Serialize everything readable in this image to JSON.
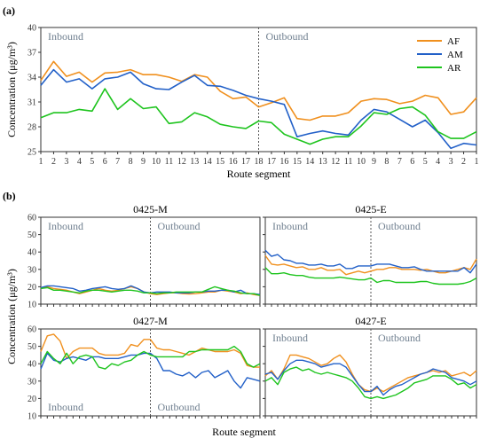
{
  "colors": {
    "AF": "#f0901e",
    "AM": "#2260c8",
    "AR": "#1ec41e",
    "divider": "#555555",
    "frame": "#333333"
  },
  "chart_data": [
    {
      "panel": "(a)",
      "type": "line",
      "title": "",
      "xlabel": "Route segment",
      "ylabel": "Concentration (μg/m³)",
      "ylim": [
        25,
        40
      ],
      "yticks": [
        25,
        28,
        31,
        34,
        37,
        40
      ],
      "x_ticklabels": [
        "1",
        "2",
        "3",
        "4",
        "5",
        "6",
        "7",
        "8",
        "9",
        "10",
        "11",
        "12",
        "13",
        "14",
        "15",
        "16",
        "17",
        "18",
        "17",
        "16",
        "15",
        "14",
        "13",
        "12",
        "11",
        "10",
        "9",
        "8",
        "7",
        "6",
        "5",
        "4",
        "3",
        "2",
        "1"
      ],
      "direction_labels": [
        "Inbound",
        "Outbound"
      ],
      "divider_after_index": 17,
      "legend": [
        "AF",
        "AM",
        "AR"
      ],
      "legend_position": "top-right",
      "series": [
        {
          "name": "AF",
          "values": [
            33.6,
            35.9,
            34.1,
            34.6,
            33.4,
            34.5,
            34.6,
            34.9,
            34.3,
            34.3,
            34.0,
            33.5,
            34.3,
            34.0,
            32.3,
            31.4,
            31.6,
            30.4,
            30.9,
            31.5,
            29.0,
            28.8,
            29.3,
            29.3,
            29.7,
            31.1,
            31.4,
            31.3,
            30.8,
            31.1,
            31.8,
            31.5,
            29.5,
            29.8,
            31.5
          ]
        },
        {
          "name": "AM",
          "values": [
            33.0,
            34.9,
            33.4,
            33.8,
            32.6,
            33.8,
            34.0,
            34.6,
            33.2,
            32.6,
            32.5,
            33.4,
            34.2,
            33.0,
            32.9,
            32.4,
            31.8,
            31.4,
            31.1,
            30.7,
            26.8,
            27.2,
            27.5,
            27.2,
            27.0,
            28.8,
            30.1,
            29.8,
            28.9,
            28.0,
            28.8,
            27.3,
            25.4,
            26.0,
            25.8
          ]
        },
        {
          "name": "AR",
          "values": [
            29.1,
            29.7,
            29.7,
            30.1,
            29.9,
            32.6,
            30.1,
            31.4,
            30.2,
            30.4,
            28.4,
            28.6,
            29.7,
            29.2,
            28.3,
            28.0,
            27.8,
            28.7,
            28.5,
            27.1,
            26.5,
            25.9,
            26.5,
            26.8,
            26.8,
            28.1,
            29.7,
            29.5,
            30.2,
            30.4,
            29.4,
            27.4,
            26.6,
            26.6,
            27.4
          ]
        }
      ]
    },
    {
      "panel": "0425-M",
      "type": "line",
      "title": "0425-M",
      "ylim": [
        10,
        60
      ],
      "yticks": [
        10,
        20,
        30,
        40,
        50,
        60
      ],
      "direction_labels": [
        "Inbound",
        "Outbound"
      ],
      "series": [
        {
          "name": "AF",
          "values": [
            19.5,
            20,
            19,
            18.5,
            18,
            17,
            16,
            17,
            18,
            19,
            18,
            17.5,
            18,
            19,
            20,
            19,
            17,
            16,
            15.5,
            16,
            16.5,
            16.5,
            16,
            15.8,
            16,
            16.5,
            17,
            17,
            18,
            17.5,
            17,
            16,
            16.5,
            15.5,
            15
          ]
        },
        {
          "name": "AM",
          "values": [
            19.5,
            20.5,
            20.5,
            20,
            19.5,
            19,
            17.5,
            18,
            19,
            19.5,
            20,
            19,
            18.5,
            19,
            20.5,
            19,
            17,
            16.5,
            17,
            17,
            17,
            16.5,
            16.5,
            16.5,
            17,
            17,
            17.5,
            17.5,
            18,
            18,
            17,
            18,
            16,
            16,
            15.5
          ]
        },
        {
          "name": "AR",
          "values": [
            19,
            19.5,
            18,
            18,
            17.5,
            17,
            16.5,
            17.5,
            18,
            18,
            17.5,
            17,
            17.5,
            18,
            18,
            17.5,
            16.5,
            16.5,
            16,
            16.5,
            16.5,
            17,
            17,
            17,
            17,
            17,
            18.5,
            20,
            19,
            18,
            17.5,
            16.5,
            16,
            16,
            15
          ]
        }
      ]
    },
    {
      "panel": "0425-E",
      "type": "line",
      "title": "0425-E",
      "ylim": [
        10,
        60
      ],
      "yticks": [
        10,
        20,
        30,
        40,
        50,
        60
      ],
      "direction_labels": [
        "Inbound",
        "Outbound"
      ],
      "series": [
        {
          "name": "AF",
          "values": [
            38,
            33,
            32.5,
            33,
            32,
            31,
            31.5,
            30,
            30,
            31,
            29.5,
            29.5,
            30,
            27,
            28,
            29,
            28,
            29,
            30,
            30,
            31,
            31,
            30,
            30,
            30,
            29.5,
            30,
            29,
            28,
            28,
            29,
            30,
            31,
            30,
            36
          ]
        },
        {
          "name": "AM",
          "values": [
            41,
            37.5,
            38.5,
            35.5,
            35,
            33.5,
            33.5,
            32.5,
            32.5,
            33,
            32,
            32,
            33,
            30.5,
            30.5,
            32,
            32,
            32,
            33,
            33,
            33,
            32,
            31,
            31,
            31.5,
            30,
            29,
            29,
            29,
            29,
            29,
            29,
            31,
            28,
            33
          ]
        },
        {
          "name": "AR",
          "values": [
            31,
            27.5,
            27.5,
            28,
            27,
            26.5,
            26.5,
            25.5,
            25,
            25,
            25,
            25,
            25.5,
            25,
            24.5,
            24,
            24,
            25,
            22.5,
            23.5,
            23.5,
            22.5,
            22.5,
            22.5,
            22.5,
            23,
            23,
            22,
            21.5,
            21.5,
            21.5,
            21.5,
            22,
            23,
            25
          ]
        }
      ]
    },
    {
      "panel": "0427-M",
      "type": "line",
      "title": "0427-M",
      "ylim": [
        10,
        60
      ],
      "yticks": [
        10,
        20,
        30,
        40,
        50,
        60
      ],
      "direction_labels": [
        "Inbound",
        "Outbound"
      ],
      "series": [
        {
          "name": "AF",
          "values": [
            47,
            56,
            57,
            53,
            43,
            47,
            49,
            49,
            49,
            46,
            45,
            45,
            45,
            46,
            51,
            50,
            54,
            54,
            49,
            48,
            48,
            47,
            46,
            45,
            47,
            49,
            48,
            47,
            47,
            47,
            48,
            46,
            39,
            38,
            38
          ]
        },
        {
          "name": "AM",
          "values": [
            37,
            46,
            42,
            41,
            43,
            44,
            43,
            42,
            44,
            44,
            43,
            43,
            43,
            44,
            45,
            45,
            46,
            46,
            43,
            36,
            36,
            34,
            33,
            35,
            32,
            35,
            36,
            32,
            34,
            36,
            30,
            26,
            32,
            31,
            30
          ]
        },
        {
          "name": "AR",
          "values": [
            40,
            47,
            43,
            40,
            46,
            40,
            44,
            45,
            44,
            38,
            37,
            40,
            39,
            41,
            42,
            45,
            47,
            45,
            44,
            44,
            44,
            44,
            44,
            47,
            47,
            48,
            48,
            48,
            48,
            48,
            50,
            47,
            40,
            38,
            40
          ]
        }
      ]
    },
    {
      "panel": "0427-E",
      "type": "line",
      "title": "0427-E",
      "ylim": [
        10,
        60
      ],
      "yticks": [
        10,
        20,
        30,
        40,
        50,
        60
      ],
      "direction_labels": [
        "Inbound",
        "Outbound"
      ],
      "series": [
        {
          "name": "AF",
          "values": [
            33,
            36,
            31,
            37,
            45,
            45,
            44,
            43,
            41,
            39,
            40,
            43,
            45,
            41,
            34,
            28,
            25,
            24,
            26,
            24,
            26,
            28,
            30,
            32,
            33,
            34,
            35,
            36,
            35,
            36,
            33,
            34,
            35,
            33,
            36
          ]
        },
        {
          "name": "AM",
          "values": [
            34,
            35,
            31,
            36,
            40,
            42,
            42,
            41,
            40,
            38,
            39,
            40,
            40,
            38,
            33,
            28,
            24,
            24,
            27,
            22,
            25,
            27,
            28,
            30,
            32,
            34,
            35,
            37,
            36,
            35,
            32,
            31,
            30,
            28,
            30
          ]
        },
        {
          "name": "AR",
          "values": [
            30,
            32,
            28,
            35,
            37,
            38,
            36,
            37,
            35,
            34,
            35,
            34,
            33,
            32,
            30,
            26,
            21,
            20,
            21,
            20,
            21,
            22,
            24,
            26,
            29,
            30,
            31,
            33,
            33,
            33,
            31,
            28,
            29,
            26,
            28
          ]
        }
      ]
    }
  ]
}
